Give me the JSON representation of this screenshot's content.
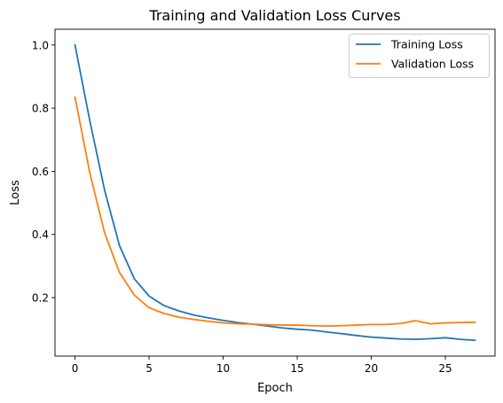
{
  "chart_data": {
    "type": "line",
    "title": "Training and Validation Loss Curves",
    "xlabel": "Epoch",
    "ylabel": "Loss",
    "xlim": [
      -1.35,
      28.35
    ],
    "ylim": [
      0.015,
      1.05
    ],
    "xticks": [
      0,
      5,
      10,
      15,
      20,
      25
    ],
    "yticks": [
      0.2,
      0.4,
      0.6,
      0.8,
      1.0
    ],
    "xtick_labels": [
      "0",
      "5",
      "10",
      "15",
      "20",
      "25"
    ],
    "ytick_labels": [
      "0.2",
      "0.4",
      "0.6",
      "0.8",
      "1.0"
    ],
    "grid": false,
    "legend_position": "upper right",
    "x": [
      0,
      1,
      2,
      3,
      4,
      5,
      6,
      7,
      8,
      9,
      10,
      11,
      12,
      13,
      14,
      15,
      16,
      17,
      18,
      19,
      20,
      21,
      22,
      23,
      24,
      25,
      26,
      27
    ],
    "series": [
      {
        "name": "Training Loss",
        "color": "#1f77b4",
        "values": [
          1.0,
          0.76,
          0.54,
          0.365,
          0.26,
          0.205,
          0.175,
          0.158,
          0.145,
          0.136,
          0.128,
          0.121,
          0.116,
          0.11,
          0.104,
          0.1,
          0.097,
          0.091,
          0.086,
          0.08,
          0.075,
          0.072,
          0.069,
          0.068,
          0.07,
          0.073,
          0.068,
          0.065
        ]
      },
      {
        "name": "Validation Loss",
        "color": "#ff7f0e",
        "values": [
          0.835,
          0.595,
          0.405,
          0.28,
          0.208,
          0.168,
          0.15,
          0.138,
          0.131,
          0.125,
          0.12,
          0.117,
          0.116,
          0.114,
          0.113,
          0.113,
          0.111,
          0.11,
          0.111,
          0.113,
          0.115,
          0.115,
          0.118,
          0.127,
          0.117,
          0.12,
          0.121,
          0.122
        ]
      }
    ]
  }
}
